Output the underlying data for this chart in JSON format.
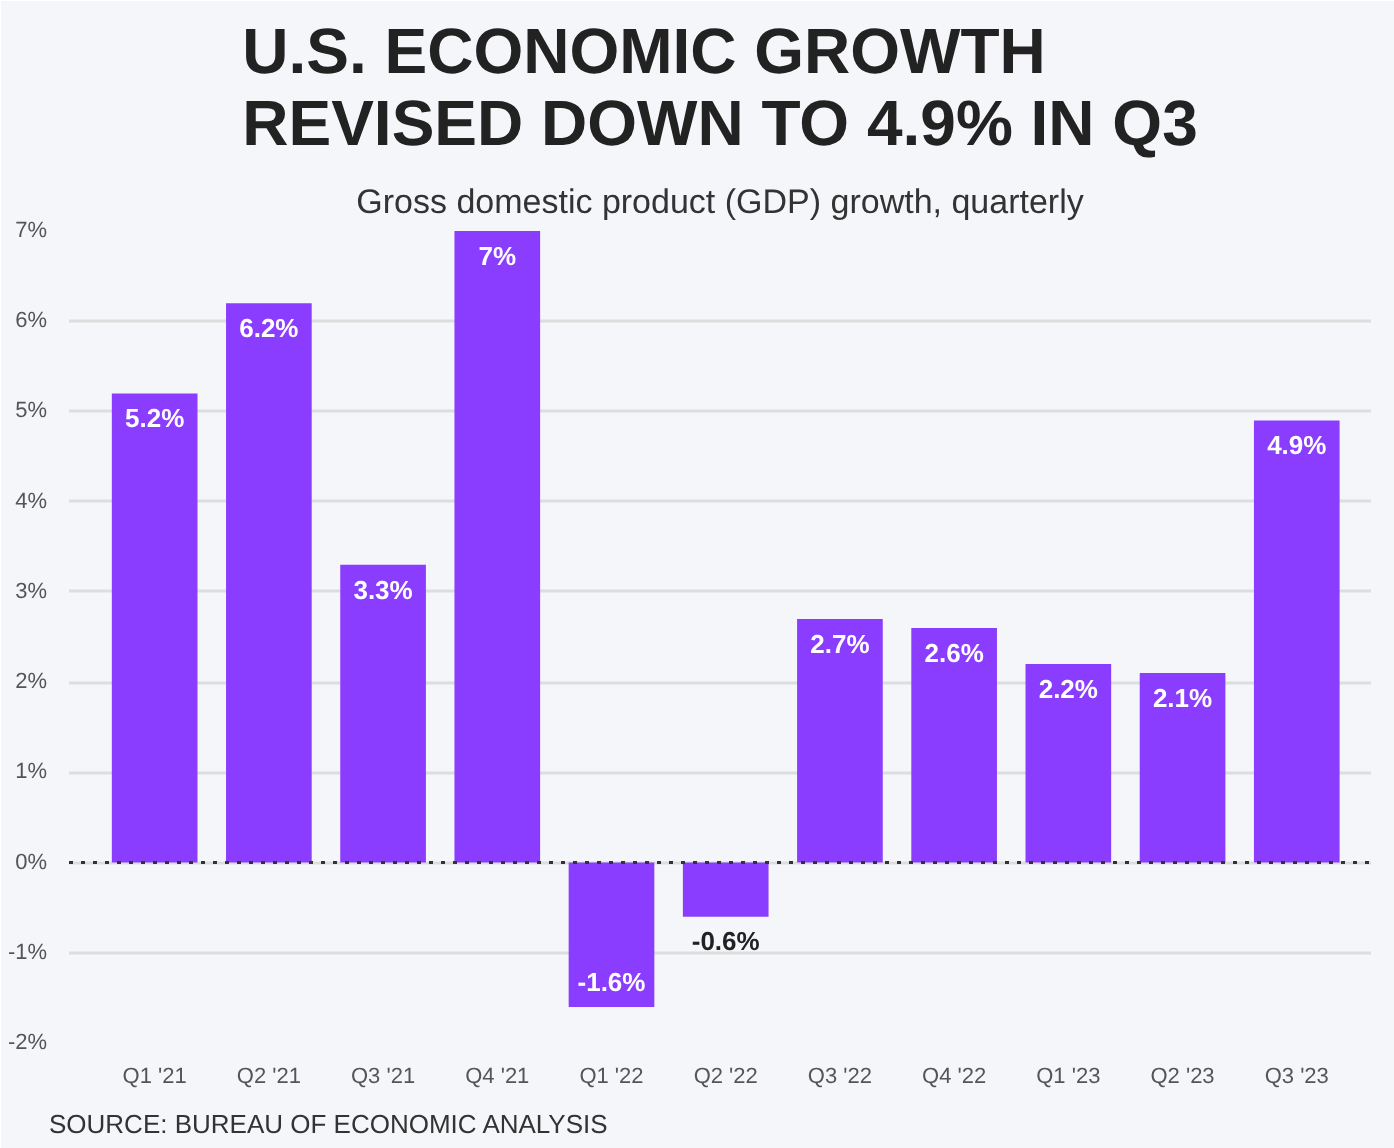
{
  "chart_data": {
    "type": "bar",
    "title": "U.S. ECONOMIC GROWTH REVISED DOWN TO 4.9% IN Q3",
    "subtitle": "Gross domestic product (GDP) growth, quarterly",
    "categories": [
      "Q1 '21",
      "Q2 '21",
      "Q3 '21",
      "Q4 '21",
      "Q1 '22",
      "Q2 '22",
      "Q3 '22",
      "Q4 '22",
      "Q1 '23",
      "Q2 '23",
      "Q3 '23"
    ],
    "values": [
      5.2,
      6.2,
      3.3,
      7,
      -1.6,
      -0.6,
      2.7,
      2.6,
      2.2,
      2.1,
      4.9
    ],
    "value_labels": [
      "5.2%",
      "6.2%",
      "3.3%",
      "7%",
      "-1.6%",
      "-0.6%",
      "2.7%",
      "2.6%",
      "2.2%",
      "2.1%",
      "4.9%"
    ],
    "color": "#8a3cff",
    "ylim": [
      -2,
      7
    ],
    "yticks": [
      {
        "value": -2,
        "label": "-2%"
      },
      {
        "value": -1,
        "label": "-1%"
      },
      {
        "value": 0,
        "label": "0%"
      },
      {
        "value": 1,
        "label": "1%"
      },
      {
        "value": 2,
        "label": "2%"
      },
      {
        "value": 3,
        "label": "3%"
      },
      {
        "value": 4,
        "label": "4%"
      },
      {
        "value": 5,
        "label": "5%"
      },
      {
        "value": 6,
        "label": "6%"
      },
      {
        "value": 7,
        "label": "7%"
      }
    ],
    "grid": "y",
    "ref_lines": [
      {
        "axis": "y",
        "value": 0,
        "color": "#333333",
        "line_style": "dotted"
      }
    ],
    "annotations": [
      "SOURCE: BUREAU OF ECONOMIC ANALYSIS"
    ]
  }
}
